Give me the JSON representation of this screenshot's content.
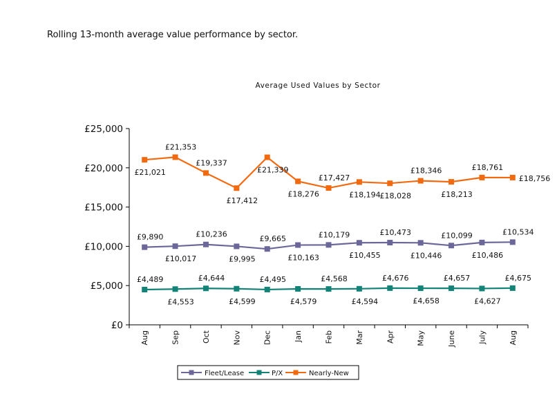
{
  "caption": "Rolling 13-month average value performance by sector.",
  "chart_data": {
    "type": "line",
    "title": "Average Used Values by Sector",
    "xlabel": "",
    "ylabel": "",
    "categories": [
      "Aug",
      "Sep",
      "Oct",
      "Nov",
      "Dec",
      "Jan",
      "Feb",
      "Mar",
      "Apr",
      "May",
      "June",
      "July",
      "Aug"
    ],
    "ylim": [
      0,
      25000
    ],
    "yticks": [
      0,
      5000,
      10000,
      15000,
      20000,
      25000
    ],
    "ytick_labels": [
      "£0",
      "£5,000",
      "£10,000",
      "£15,000",
      "£20,000",
      "£25,000"
    ],
    "grid": false,
    "legend_position": "bottom",
    "series": [
      {
        "name": "Fleet/Lease",
        "color": "#6B6799",
        "values": [
          9890,
          10017,
          10236,
          9995,
          9665,
          10163,
          10179,
          10455,
          10473,
          10446,
          10099,
          10486,
          10534
        ],
        "labels": [
          "£9,890",
          "£10,017",
          "£10,236",
          "£9,995",
          "£9,665",
          "£10,163",
          "£10,179",
          "£10,455",
          "£10,473",
          "£10,446",
          "£10,099",
          "£10,486",
          "£10,534"
        ],
        "label_pos": [
          "above",
          "below",
          "above",
          "below",
          "above",
          "below",
          "above",
          "below",
          "above",
          "below",
          "above",
          "below",
          "above"
        ]
      },
      {
        "name": "P/X",
        "color": "#138378",
        "values": [
          4489,
          4553,
          4644,
          4599,
          4495,
          4579,
          4568,
          4594,
          4676,
          4658,
          4657,
          4627,
          4675
        ],
        "labels": [
          "£4,489",
          "£4,553",
          "£4,644",
          "£4,599",
          "£4,495",
          "£4,579",
          "£4,568",
          "£4,594",
          "£4,676",
          "£4,658",
          "£4,657",
          "£4,627",
          "£4,675"
        ],
        "label_pos": [
          "above",
          "below",
          "above",
          "below",
          "above",
          "below",
          "above",
          "below",
          "above",
          "below",
          "above",
          "below",
          "above"
        ]
      },
      {
        "name": "Nearly-New",
        "color": "#F26A0F",
        "values": [
          21021,
          21353,
          19337,
          17412,
          21339,
          18276,
          17427,
          18194,
          18028,
          18346,
          18213,
          18761,
          18756
        ],
        "labels": [
          "£21,021",
          "£21,353",
          "£19,337",
          "£17,412",
          "£21,339",
          "£18,276",
          "£17,427",
          "£18,194",
          "£18,028",
          "£18,346",
          "£18,213",
          "£18,761",
          "£18,756"
        ],
        "label_pos": [
          "below",
          "above",
          "above",
          "below",
          "below",
          "below",
          "above",
          "below",
          "below",
          "above",
          "below",
          "above",
          "right"
        ]
      }
    ]
  }
}
